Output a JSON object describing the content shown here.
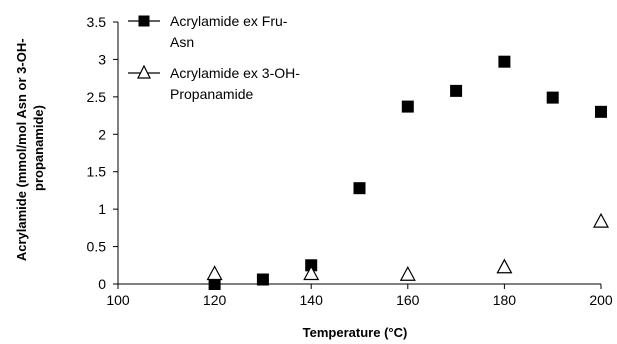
{
  "chart_data": {
    "type": "scatter",
    "title": "",
    "xlabel": "Temperature (°C)",
    "ylabel_lines": [
      "Acrylamide (mmol/mol Asn or 3-OH-",
      "propanamide)"
    ],
    "xlim": [
      100,
      200
    ],
    "ylim": [
      0,
      3.5
    ],
    "x_ticks": [
      100,
      120,
      140,
      160,
      180,
      200
    ],
    "y_ticks": [
      0,
      0.5,
      1,
      1.5,
      2,
      2.5,
      3,
      3.5
    ],
    "x_tick_labels": [
      "100",
      "120",
      "140",
      "160",
      "180",
      "200"
    ],
    "y_tick_labels": [
      "0",
      "0.5",
      "1",
      "1.5",
      "2",
      "2.5",
      "3",
      "3.5"
    ],
    "grid": false,
    "legend_position": "top-left",
    "series": [
      {
        "name_lines": [
          "Acrylamide ex Fru-",
          "Asn"
        ],
        "marker": "filled-square",
        "color": "#000000",
        "points": [
          {
            "x": 120,
            "y": 0.0
          },
          {
            "x": 130,
            "y": 0.06
          },
          {
            "x": 140,
            "y": 0.25
          },
          {
            "x": 150,
            "y": 1.28
          },
          {
            "x": 160,
            "y": 2.37
          },
          {
            "x": 170,
            "y": 2.58
          },
          {
            "x": 180,
            "y": 2.97
          },
          {
            "x": 190,
            "y": 2.49
          },
          {
            "x": 200,
            "y": 2.3
          }
        ]
      },
      {
        "name_lines": [
          "Acrylamide ex 3-OH-",
          "Propanamide"
        ],
        "marker": "open-triangle",
        "color": "#000000",
        "points": [
          {
            "x": 120,
            "y": 0.14
          },
          {
            "x": 140,
            "y": 0.14
          },
          {
            "x": 160,
            "y": 0.13
          },
          {
            "x": 180,
            "y": 0.23
          },
          {
            "x": 200,
            "y": 0.84
          }
        ]
      }
    ]
  }
}
